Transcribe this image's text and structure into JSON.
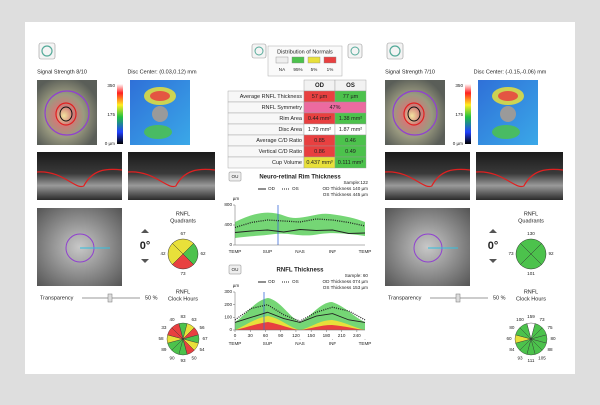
{
  "left_eye": {
    "signal": "Signal Strength 8/10",
    "disc_center": "Disc Center: (0.03,0.12) mm",
    "colorbar": [
      "350",
      "175",
      "0 µm"
    ],
    "rotation": "0°",
    "quadrants_title": [
      "RNFL",
      "Quadrants"
    ],
    "quadrants": [
      67,
      62,
      73,
      42
    ],
    "quadrant_colors": [
      "#e8e03a",
      "#4cc24c",
      "#e84040",
      "#e8e03a"
    ],
    "transparency": "Transparency",
    "transparency_value": "50 %",
    "clock_title": [
      "RNFL",
      "Clock Hours"
    ],
    "clock_hours": [
      83,
      63,
      56,
      67,
      54,
      50,
      93,
      90,
      89,
      58,
      33,
      40
    ],
    "clock_colors": [
      "#4cc24c",
      "#e8e03a",
      "#e84040",
      "#4cc24c",
      "#e8e03a",
      "#e84040",
      "#4cc24c",
      "#4cc24c",
      "#4cc24c",
      "#e8e03a",
      "#e84040",
      "#e84040"
    ]
  },
  "right_eye": {
    "signal": "Signal Strength 7/10",
    "disc_center": "Disc Center: (-0.15,-0.06) mm",
    "colorbar": [
      "350",
      "175",
      "0 µm"
    ],
    "rotation": "0°",
    "quadrants_title": [
      "RNFL",
      "Quadrants"
    ],
    "quadrants": [
      130,
      92,
      101,
      73
    ],
    "quadrant_colors": [
      "#4cc24c",
      "#4cc24c",
      "#4cc24c",
      "#4cc24c"
    ],
    "transparency": "Transparency",
    "transparency_value": "50 %",
    "clock_title": [
      "RNFL",
      "Clock Hours"
    ],
    "clock_hours": [
      159,
      73,
      75,
      80,
      88,
      105,
      111,
      93,
      84,
      60,
      80,
      100
    ],
    "clock_colors": [
      "#ffffff",
      "#4cc24c",
      "#4cc24c",
      "#4cc24c",
      "#4cc24c",
      "#4cc24c",
      "#4cc24c",
      "#4cc24c",
      "#4cc24c",
      "#e8e03a",
      "#4cc24c",
      "#4cc24c"
    ]
  },
  "normals": {
    "title": "Distribution of Normals",
    "labels": [
      "NA",
      "95%",
      "5%",
      "1%"
    ],
    "colors": [
      "#eeeeee",
      "#4cc24c",
      "#e8e03a",
      "#e84040"
    ]
  },
  "table": {
    "header": [
      "OD",
      "OS"
    ],
    "rows": [
      [
        "Average RNFL Thickness",
        "57 µm",
        "77 µm"
      ],
      [
        "RNFL Symmetry",
        "47%"
      ],
      [
        "Rim Area",
        "0.44 mm²",
        "1.38 mm²"
      ],
      [
        "Disc Area",
        "1.79 mm²",
        "1.87 mm²"
      ],
      [
        "Average C/D Ratio",
        "0.85",
        "0.46"
      ],
      [
        "Vertical C/D Ratio",
        "0.86",
        "0.49"
      ],
      [
        "Cup Volume",
        "0.437 mm³",
        "0.111 mm³"
      ]
    ],
    "cell_colors": [
      [
        "#e84040",
        "#4cc24c"
      ],
      [
        "#ec6aa0"
      ],
      [
        "#e84040",
        "#4cc24c"
      ],
      [
        "#ffffff",
        "#ffffff"
      ],
      [
        "#e84040",
        "#4cc24c"
      ],
      [
        "#e84040",
        "#4cc24c"
      ],
      [
        "#e8e03a",
        "#4cc24c"
      ]
    ]
  },
  "rim_chart": {
    "button": "OU",
    "title": "Neuro-retinal Rim Thickness",
    "sample": "Sample:122",
    "od_thickness": "OD Thickness 140 µm",
    "os_thickness": "OS Thickness 445 µm",
    "y_label": "µm",
    "ylim": [
      0,
      800
    ],
    "yticks": [
      0,
      400,
      800
    ],
    "categories": [
      "TEMP",
      null,
      "SUP",
      null,
      "NAS",
      null,
      "INF",
      null,
      "TEMP"
    ],
    "series": [
      {
        "name": "OD",
        "color": "#222222",
        "dash": false,
        "values": [
          250,
          280,
          300,
          260,
          310,
          290,
          300,
          230,
          240
        ]
      },
      {
        "name": "OS",
        "color": "#222222",
        "dash": true,
        "values": [
          350,
          450,
          500,
          480,
          460,
          520,
          500,
          450,
          380
        ]
      }
    ]
  },
  "rnfl_chart": {
    "button": "OU",
    "title": "RNFL Thickness",
    "sample": "Sample: 60",
    "od_thickness": "OD Thickness 074 µm",
    "os_thickness": "OS Thickness 153 µm",
    "y_label": "µm",
    "ylim": [
      0,
      300
    ],
    "yticks": [
      0,
      100,
      200,
      300
    ],
    "xlim": [
      0,
      256
    ],
    "xticks": [
      0,
      30,
      60,
      90,
      120,
      150,
      180,
      210,
      240
    ],
    "regions": [
      {
        "value": 0,
        "label": "TEMP"
      },
      {
        "value": 64,
        "label": "SUP"
      },
      {
        "value": 128,
        "label": "NAS"
      },
      {
        "value": 192,
        "label": "INF"
      },
      {
        "value": 256,
        "label": "TEMP"
      }
    ],
    "x": [
      0,
      32,
      64,
      96,
      128,
      160,
      192,
      224,
      256
    ],
    "series": [
      {
        "name": "OD",
        "color": "#222222",
        "dash": false,
        "values": [
          60,
          100,
          140,
          90,
          60,
          110,
          130,
          80,
          60
        ]
      },
      {
        "name": "OS",
        "color": "#222222",
        "dash": true,
        "values": [
          80,
          170,
          200,
          120,
          70,
          140,
          180,
          150,
          80
        ]
      }
    ]
  }
}
